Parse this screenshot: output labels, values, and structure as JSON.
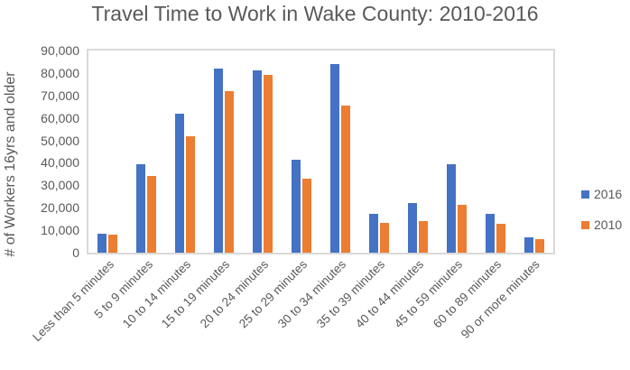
{
  "chart_data": {
    "type": "bar",
    "title": "Travel Time to Work in Wake County: 2010-2016",
    "xlabel": "",
    "ylabel": "# of Workers 16yrs and older",
    "ylim": [
      0,
      90000
    ],
    "yticks": [
      "0",
      "10,000",
      "20,000",
      "30,000",
      "40,000",
      "50,000",
      "60,000",
      "70,000",
      "80,000",
      "90,000"
    ],
    "grid": false,
    "legend_position": "right",
    "categories": [
      "Less than 5 minutes",
      "5 to 9 minutes",
      "10 to 14 minutes",
      "15 to 19 minutes",
      "20 to 24 minutes",
      "25 to 29 minutes",
      "30 to 34 minutes",
      "35 to 39 minutes",
      "40 to 44 minutes",
      "45 to 59 minutes",
      "60 to 89 minutes",
      "90 or more minutes"
    ],
    "series": [
      {
        "name": "2016",
        "color": "#4472C4",
        "values": [
          8400,
          39200,
          62000,
          82000,
          81200,
          41200,
          84000,
          17200,
          22000,
          39200,
          17200,
          6800
        ]
      },
      {
        "name": "2010",
        "color": "#ED7D31",
        "values": [
          8000,
          34000,
          52000,
          72000,
          79200,
          32800,
          65600,
          13200,
          14000,
          21200,
          12800,
          6000
        ]
      }
    ]
  }
}
